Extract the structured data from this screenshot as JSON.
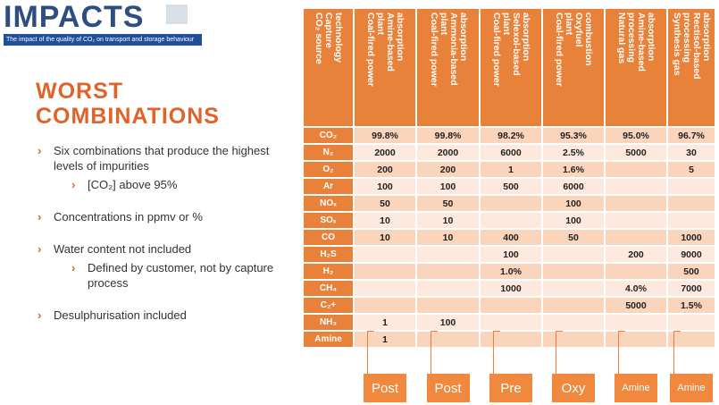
{
  "logo": {
    "name": "IMPACTS",
    "tagline": "The impact of the quality of CO₂ on transport and storage behaviour"
  },
  "title": [
    "WORST",
    "COMBINATIONS"
  ],
  "bullets": [
    {
      "text": "Six combinations that produce the highest levels of impurities",
      "sub": "[CO₂] above 95%"
    },
    {
      "text": "Concentrations in ppmv or %"
    },
    {
      "text": "Water content not included",
      "sub": "Defined by customer, not by capture process"
    },
    {
      "text": "Desulphurisation included"
    }
  ],
  "table": {
    "header": [
      [
        "CO₂ source",
        "Capture",
        "technology"
      ],
      [
        "Coal-fired power",
        "plant",
        "Amine-based",
        "absorption"
      ],
      [
        "Coal-fired power",
        "plant",
        "Ammonia-based",
        "absorption"
      ],
      [
        "Coal-fired power",
        "plant",
        "Selexol-based",
        "absorption"
      ],
      [
        "Coal-fired power",
        "plant",
        "Oxyfuel",
        "combustion"
      ],
      [
        "Natural gas",
        "processing",
        "Amine-based",
        "absorption"
      ],
      [
        "Synthesis gas",
        "processing",
        "Rectisol-based",
        "absorption"
      ]
    ],
    "rows": [
      [
        "CO₂",
        "99.8%",
        "99.8%",
        "98.2%",
        "95.3%",
        "95.0%",
        "96.7%"
      ],
      [
        "N₂",
        "2000",
        "2000",
        "6000",
        "2.5%",
        "5000",
        "30"
      ],
      [
        "O₂",
        "200",
        "200",
        "1",
        "1.6%",
        null,
        "5"
      ],
      [
        "Ar",
        "100",
        "100",
        "500",
        "6000",
        null,
        null
      ],
      [
        "NOₓ",
        "50",
        "50",
        null,
        "100",
        null,
        null
      ],
      [
        "SOₓ",
        "10",
        "10",
        null,
        "100",
        null,
        null
      ],
      [
        "CO",
        "10",
        "10",
        "400",
        "50",
        null,
        "1000"
      ],
      [
        "H₂S",
        null,
        null,
        "100",
        null,
        "200",
        "9000"
      ],
      [
        "H₂",
        null,
        null,
        "1.0%",
        null,
        null,
        "500"
      ],
      [
        "CH₄",
        null,
        null,
        "1000",
        null,
        "4.0%",
        "7000"
      ],
      [
        "C₂+",
        null,
        null,
        null,
        null,
        "5000",
        "1.5%"
      ],
      [
        "NH₃",
        "1",
        "100",
        null,
        null,
        null,
        null
      ],
      [
        "Amine",
        "1",
        null,
        null,
        null,
        null,
        null
      ]
    ],
    "labels": [
      "Post",
      "Post",
      "Pre",
      "Oxy",
      "Amine",
      "Amine"
    ]
  }
}
